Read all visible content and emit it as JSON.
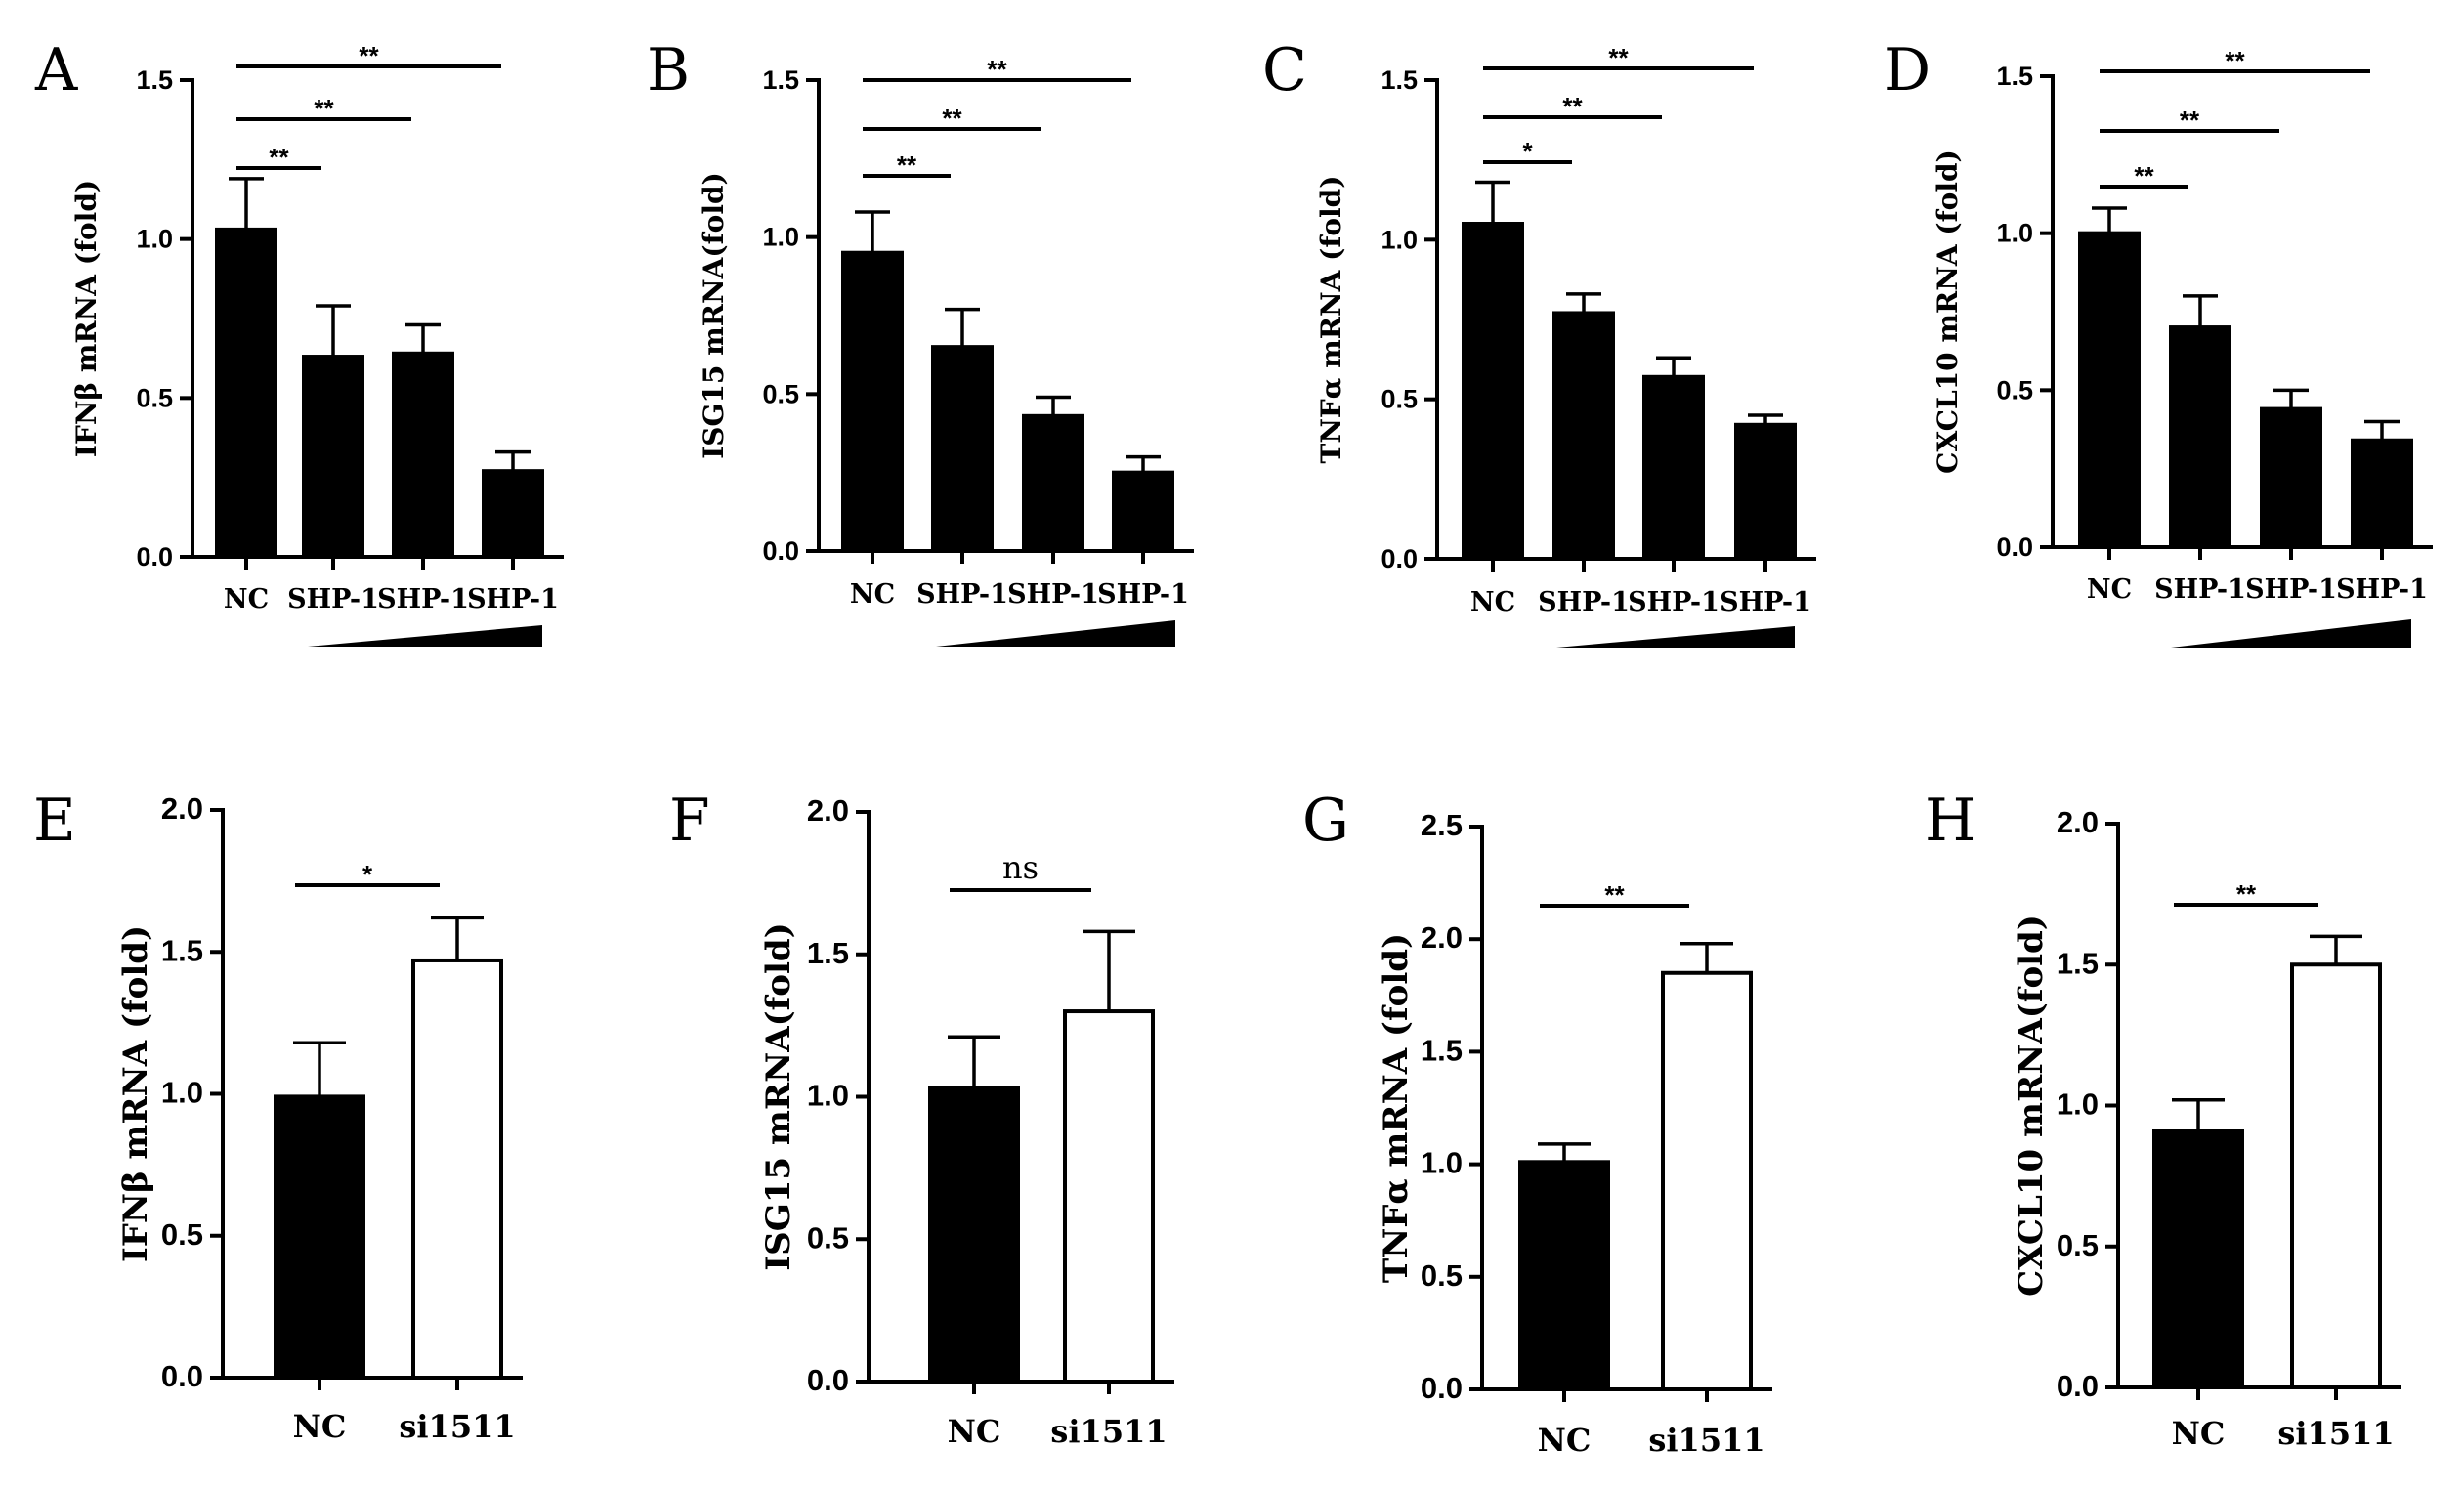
{
  "chart_data": [
    {
      "panel": "A",
      "type": "bar",
      "ylabel": "IFNβ mRNA (fold)",
      "categories": [
        "NC",
        "SHP-1",
        "SHP-1",
        "SHP-1"
      ],
      "values": [
        1.03,
        0.63,
        0.64,
        0.27
      ],
      "errors": [
        0.16,
        0.16,
        0.09,
        0.06
      ],
      "fills": [
        "#000000",
        "#000000",
        "#000000",
        "#000000"
      ],
      "ylim": [
        0,
        1.5
      ],
      "yticks": [
        "0.0",
        "0.5",
        "1.0",
        "1.5"
      ],
      "dose_wedge": true,
      "significance": [
        {
          "from": 0,
          "to": 1,
          "label": "**"
        },
        {
          "from": 0,
          "to": 2,
          "label": "**"
        },
        {
          "from": 0,
          "to": 3,
          "label": "**"
        }
      ]
    },
    {
      "panel": "B",
      "type": "bar",
      "ylabel": "ISG15 mRNA(fold)",
      "categories": [
        "NC",
        "SHP-1",
        "SHP-1",
        "SHP-1"
      ],
      "values": [
        0.95,
        0.65,
        0.43,
        0.25
      ],
      "errors": [
        0.13,
        0.12,
        0.06,
        0.05
      ],
      "fills": [
        "#000000",
        "#000000",
        "#000000",
        "#000000"
      ],
      "ylim": [
        0,
        1.5
      ],
      "yticks": [
        "0.0",
        "0.5",
        "1.0",
        "1.5"
      ],
      "dose_wedge": true,
      "significance": [
        {
          "from": 0,
          "to": 1,
          "label": "**"
        },
        {
          "from": 0,
          "to": 2,
          "label": "**"
        },
        {
          "from": 0,
          "to": 3,
          "label": "**"
        }
      ]
    },
    {
      "panel": "C",
      "type": "bar",
      "ylabel": "TNFα mRNA (fold)",
      "categories": [
        "NC",
        "SHP-1",
        "SHP-1",
        "SHP-1"
      ],
      "values": [
        1.05,
        0.77,
        0.57,
        0.42
      ],
      "errors": [
        0.13,
        0.06,
        0.06,
        0.03
      ],
      "fills": [
        "#000000",
        "#000000",
        "#000000",
        "#000000"
      ],
      "ylim": [
        0,
        1.5
      ],
      "yticks": [
        "0.0",
        "0.5",
        "1.0",
        "1.5"
      ],
      "dose_wedge": true,
      "significance": [
        {
          "from": 0,
          "to": 1,
          "label": "*"
        },
        {
          "from": 0,
          "to": 2,
          "label": "**"
        },
        {
          "from": 0,
          "to": 3,
          "label": "**"
        }
      ]
    },
    {
      "panel": "D",
      "type": "bar",
      "ylabel": "CXCL10 mRNA (fold)",
      "categories": [
        "NC",
        "SHP-1",
        "SHP-1",
        "SHP-1"
      ],
      "values": [
        1.0,
        0.7,
        0.44,
        0.34
      ],
      "errors": [
        0.08,
        0.1,
        0.06,
        0.06
      ],
      "fills": [
        "#000000",
        "#000000",
        "#000000",
        "#000000"
      ],
      "ylim": [
        0,
        1.5
      ],
      "yticks": [
        "0.0",
        "0.5",
        "1.0",
        "1.5"
      ],
      "dose_wedge": true,
      "significance": [
        {
          "from": 0,
          "to": 1,
          "label": "**"
        },
        {
          "from": 0,
          "to": 2,
          "label": "**"
        },
        {
          "from": 0,
          "to": 3,
          "label": "**"
        }
      ]
    },
    {
      "panel": "E",
      "type": "bar",
      "ylabel": "IFNβ mRNA (fold)",
      "categories": [
        "NC",
        "si1511"
      ],
      "values": [
        0.99,
        1.47
      ],
      "errors": [
        0.19,
        0.15
      ],
      "fills": [
        "#000000",
        "#ffffff"
      ],
      "ylim": [
        0,
        2.0
      ],
      "yticks": [
        "0.0",
        "0.5",
        "1.0",
        "1.5",
        "2.0"
      ],
      "dose_wedge": false,
      "significance": [
        {
          "from": 0,
          "to": 1,
          "label": "*"
        }
      ]
    },
    {
      "panel": "F",
      "type": "bar",
      "ylabel": "ISG15 mRNA(fold)",
      "categories": [
        "NC",
        "si1511"
      ],
      "values": [
        1.03,
        1.3
      ],
      "errors": [
        0.18,
        0.28
      ],
      "fills": [
        "#000000",
        "#ffffff"
      ],
      "ylim": [
        0,
        2.0
      ],
      "yticks": [
        "0.0",
        "0.5",
        "1.0",
        "1.5",
        "2.0"
      ],
      "dose_wedge": false,
      "significance": [
        {
          "from": 0,
          "to": 1,
          "label": "ns"
        }
      ]
    },
    {
      "panel": "G",
      "type": "bar",
      "ylabel": "TNFα mRNA (fold)",
      "categories": [
        "NC",
        "si1511"
      ],
      "values": [
        1.01,
        1.85
      ],
      "errors": [
        0.08,
        0.13
      ],
      "fills": [
        "#000000",
        "#ffffff"
      ],
      "ylim": [
        0,
        2.5
      ],
      "yticks": [
        "0.0",
        "0.5",
        "1.0",
        "1.5",
        "2.0",
        "2.5"
      ],
      "dose_wedge": false,
      "significance": [
        {
          "from": 0,
          "to": 1,
          "label": "**"
        }
      ]
    },
    {
      "panel": "H",
      "type": "bar",
      "ylabel": "CXCL10 mRNA(fold)",
      "categories": [
        "NC",
        "si1511"
      ],
      "values": [
        0.91,
        1.5
      ],
      "errors": [
        0.11,
        0.1
      ],
      "fills": [
        "#000000",
        "#ffffff"
      ],
      "ylim": [
        0,
        2.0
      ],
      "yticks": [
        "0.0",
        "0.5",
        "1.0",
        "1.5",
        "2.0"
      ],
      "dose_wedge": false,
      "significance": [
        {
          "from": 0,
          "to": 1,
          "label": "**"
        }
      ]
    }
  ]
}
